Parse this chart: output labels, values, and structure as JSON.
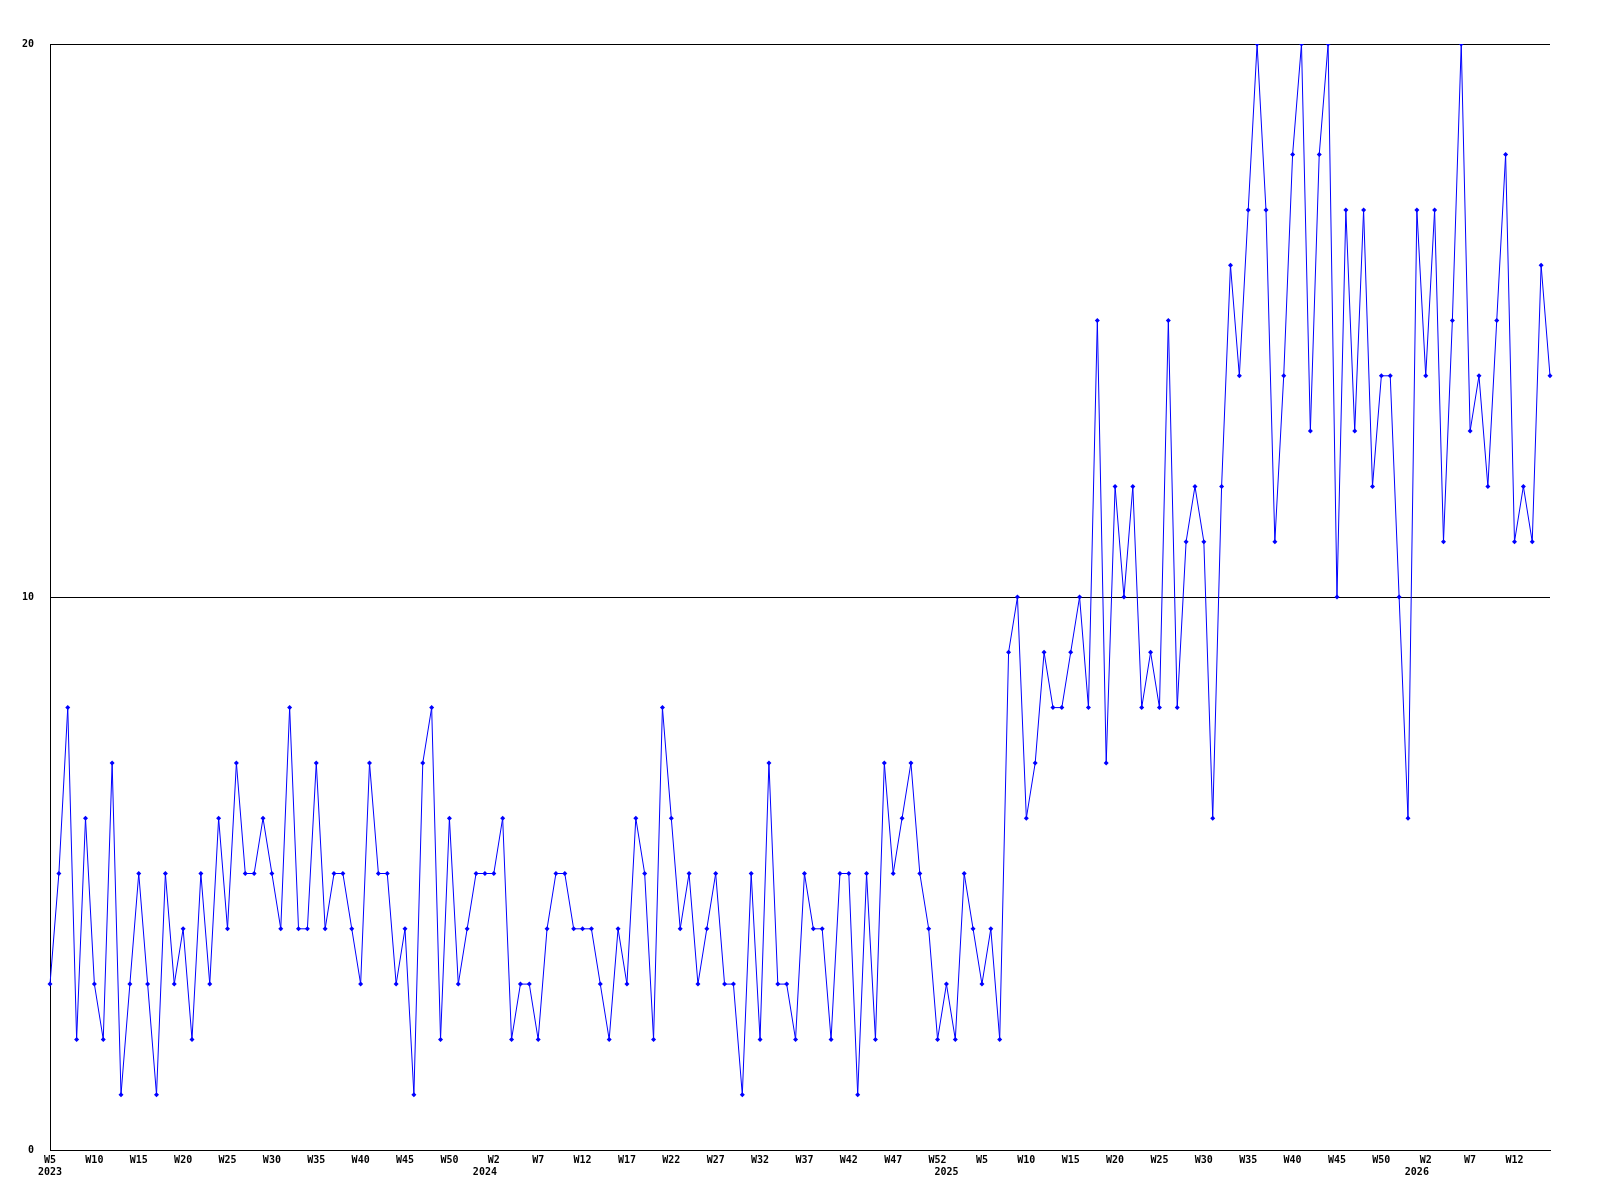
{
  "chart_data": {
    "type": "line",
    "categories": [
      "W5\n2023",
      null,
      null,
      null,
      null,
      "W10",
      null,
      null,
      null,
      null,
      "W15",
      null,
      null,
      null,
      null,
      "W20",
      null,
      null,
      null,
      null,
      "W25",
      null,
      null,
      null,
      null,
      "W30",
      null,
      null,
      null,
      null,
      "W35",
      null,
      null,
      null,
      null,
      "W40",
      null,
      null,
      null,
      null,
      "W45",
      null,
      null,
      null,
      null,
      "W50",
      null,
      null,
      null,
      "\n2024",
      "W2",
      null,
      null,
      null,
      null,
      "W7",
      null,
      null,
      null,
      null,
      "W12",
      null,
      null,
      null,
      null,
      "W17",
      null,
      null,
      null,
      null,
      "W22",
      null,
      null,
      null,
      null,
      "W27",
      null,
      null,
      null,
      null,
      "W32",
      null,
      null,
      null,
      null,
      "W37",
      null,
      null,
      null,
      null,
      "W42",
      null,
      null,
      null,
      null,
      "W47",
      null,
      null,
      null,
      null,
      "W52",
      "\n2025",
      null,
      null,
      null,
      "W5",
      null,
      null,
      null,
      null,
      "W10",
      null,
      null,
      null,
      null,
      "W15",
      null,
      null,
      null,
      null,
      "W20",
      null,
      null,
      null,
      null,
      "W25",
      null,
      null,
      null,
      null,
      "W30",
      null,
      null,
      null,
      null,
      "W35",
      null,
      null,
      null,
      null,
      "W40",
      null,
      null,
      null,
      null,
      "W45",
      null,
      null,
      null,
      null,
      "W50",
      null,
      null,
      null,
      "\n2026",
      "W2",
      null,
      null,
      null,
      null,
      "W7",
      null,
      null,
      null,
      null,
      "W12",
      null,
      null,
      null,
      null
    ],
    "series": [
      {
        "color": "#0000ff",
        "values": [
          3,
          5,
          8,
          2,
          6,
          3,
          2,
          7,
          1,
          3,
          5,
          3,
          1,
          5,
          3,
          4,
          2,
          5,
          3,
          6,
          4,
          7,
          5,
          5,
          6,
          5,
          4,
          8,
          4,
          4,
          7,
          4,
          5,
          5,
          4,
          3,
          7,
          5,
          5,
          3,
          4,
          1,
          7,
          8,
          2,
          6,
          3,
          4,
          5,
          5,
          5,
          6,
          2,
          3,
          3,
          2,
          4,
          5,
          5,
          4,
          4,
          4,
          3,
          2,
          4,
          3,
          6,
          5,
          2,
          8,
          6,
          4,
          5,
          3,
          4,
          5,
          3,
          3,
          1,
          5,
          2,
          7,
          3,
          3,
          2,
          5,
          4,
          4,
          2,
          5,
          5,
          1,
          5,
          2,
          7,
          5,
          6,
          7,
          5,
          4,
          2,
          3,
          2,
          5,
          4,
          3,
          4,
          2,
          9,
          10,
          6,
          7,
          9,
          8,
          8,
          9,
          10,
          8,
          15,
          7,
          12,
          10,
          12,
          8,
          9,
          8,
          15,
          8,
          11,
          12,
          11,
          6,
          12,
          16,
          14,
          17,
          20,
          17,
          11,
          14,
          18,
          20,
          13,
          18,
          20,
          10,
          17,
          13,
          17,
          12,
          14,
          14,
          10,
          6,
          17,
          14,
          17,
          11,
          15,
          20,
          13,
          14,
          12,
          15,
          18,
          11,
          12,
          11,
          16,
          14
        ]
      }
    ],
    "ylim": [
      0,
      20
    ],
    "yticks": [
      0,
      10,
      20
    ],
    "grid": "y",
    "legend": false,
    "marker": "diamond",
    "line_style": "solid"
  }
}
